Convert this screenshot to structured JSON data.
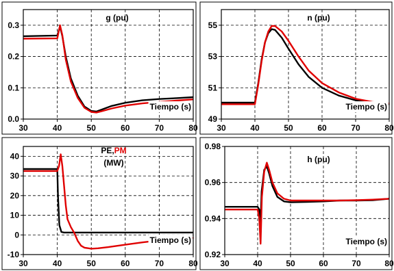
{
  "chart_data": [
    {
      "type": "line",
      "title": "g (pu)",
      "xlabel": "Tiempo (s)",
      "xlim": [
        30,
        80
      ],
      "ylim": [
        0,
        0.35
      ],
      "xticks": [
        30,
        40,
        50,
        60,
        70,
        80
      ],
      "yticks": [
        0,
        0.1,
        0.2,
        0.3
      ],
      "ytick_labels": [
        "0.0",
        "0.1",
        "0.2",
        "0.3"
      ],
      "grid": true,
      "series": [
        {
          "color": "#000000",
          "x": [
            30,
            40,
            40.8,
            41.5,
            42.5,
            44,
            46,
            48,
            50,
            51.5,
            53,
            56,
            60,
            65,
            70,
            75,
            80
          ],
          "y": [
            0.265,
            0.267,
            0.296,
            0.265,
            0.2,
            0.13,
            0.075,
            0.04,
            0.026,
            0.024,
            0.03,
            0.042,
            0.052,
            0.06,
            0.064,
            0.067,
            0.07
          ]
        },
        {
          "color": "#e00000",
          "x": [
            30,
            40,
            40.8,
            41.5,
            42.5,
            44,
            46,
            48,
            50,
            51.5,
            53,
            56,
            60,
            65,
            70,
            75,
            80
          ],
          "y": [
            0.257,
            0.258,
            0.3,
            0.268,
            0.19,
            0.12,
            0.068,
            0.036,
            0.023,
            0.021,
            0.025,
            0.034,
            0.043,
            0.05,
            0.055,
            0.059,
            0.063
          ]
        }
      ]
    },
    {
      "type": "line",
      "title": "n (pu)",
      "xlabel": "Tiempo (s)",
      "xlim": [
        30,
        80
      ],
      "ylim": [
        49,
        56
      ],
      "xticks": [
        30,
        40,
        50,
        60,
        70,
        80
      ],
      "yticks": [
        49,
        51,
        53,
        55
      ],
      "ytick_labels": [
        "49",
        "51",
        "53",
        "55"
      ],
      "grid": true,
      "series": [
        {
          "color": "#000000",
          "x": [
            30,
            40,
            41,
            42,
            43,
            44,
            45,
            46,
            48,
            50,
            53,
            56,
            60,
            65,
            70,
            75,
            80
          ],
          "y": [
            50.05,
            50.05,
            51.3,
            52.8,
            53.9,
            54.5,
            54.75,
            54.7,
            54.2,
            53.5,
            52.5,
            51.7,
            51.0,
            50.5,
            50.2,
            50.05,
            49.95
          ]
        },
        {
          "color": "#e00000",
          "x": [
            30,
            40,
            41,
            42,
            43,
            44,
            45,
            46,
            48,
            50,
            53,
            56,
            60,
            65,
            70,
            75,
            80
          ],
          "y": [
            49.95,
            49.95,
            51.2,
            52.7,
            53.9,
            54.6,
            54.95,
            54.95,
            54.6,
            54.0,
            53.0,
            52.1,
            51.3,
            50.7,
            50.3,
            50.1,
            50.0
          ]
        }
      ]
    },
    {
      "type": "line",
      "title": "PE,PM",
      "title_parts": [
        {
          "text": "PE",
          "color": "#000000"
        },
        {
          "text": ",",
          "color": "#000000"
        },
        {
          "text": "PM",
          "color": "#e00000"
        }
      ],
      "subtitle": "(MW)",
      "xlabel": "Tiempo (s)",
      "xlim": [
        30,
        80
      ],
      "ylim": [
        -10,
        45
      ],
      "xticks": [
        30,
        40,
        50,
        60,
        70,
        80
      ],
      "yticks": [
        -10,
        0,
        10,
        20,
        30,
        40
      ],
      "ytick_labels": [
        "-10",
        "0",
        "10",
        "20",
        "30",
        "40"
      ],
      "grid": true,
      "series": [
        {
          "color": "#000000",
          "x": [
            30,
            39.5,
            40,
            40.2,
            40.6,
            41.2,
            42,
            50,
            60,
            70,
            80
          ],
          "y": [
            33.5,
            33.5,
            33.5,
            20,
            5,
            1.5,
            1.2,
            1.2,
            1.2,
            1.2,
            1.2
          ]
        },
        {
          "color": "#e00000",
          "x": [
            30,
            40,
            40.5,
            41,
            41.5,
            42,
            42.5,
            43,
            44,
            45,
            46,
            47,
            48,
            50,
            52,
            55,
            60,
            65,
            70,
            75,
            80
          ],
          "y": [
            32.5,
            32.5,
            35,
            41,
            35,
            25,
            15,
            8,
            4,
            1,
            -3,
            -5.5,
            -6.5,
            -7,
            -6.8,
            -6.2,
            -5,
            -3.8,
            -2.8,
            -2,
            -1.5
          ]
        }
      ]
    },
    {
      "type": "line",
      "title": "h (pu)",
      "xlabel": "Tiempo (s)",
      "xlim": [
        30,
        80
      ],
      "ylim": [
        0.92,
        0.98
      ],
      "xticks": [
        30,
        40,
        50,
        60,
        70,
        80
      ],
      "yticks": [
        0.92,
        0.94,
        0.96,
        0.98
      ],
      "ytick_labels": [
        "0.92",
        "0.94",
        "0.96",
        "0.98"
      ],
      "grid": true,
      "series": [
        {
          "color": "#000000",
          "x": [
            30,
            40,
            40.5,
            40.8,
            41.2,
            42,
            42.8,
            43.5,
            44.5,
            46,
            48,
            50,
            55,
            60,
            65,
            70,
            75,
            80
          ],
          "y": [
            0.9465,
            0.9465,
            0.945,
            0.933,
            0.955,
            0.967,
            0.969,
            0.965,
            0.958,
            0.952,
            0.9495,
            0.949,
            0.9492,
            0.9495,
            0.95,
            0.95,
            0.9502,
            0.951
          ]
        },
        {
          "color": "#e00000",
          "x": [
            30,
            40,
            40.5,
            40.9,
            41.3,
            42,
            42.8,
            43.5,
            44.5,
            46,
            48,
            50,
            55,
            60,
            65,
            70,
            75,
            80
          ],
          "y": [
            0.945,
            0.945,
            0.94,
            0.926,
            0.952,
            0.966,
            0.971,
            0.967,
            0.96,
            0.954,
            0.951,
            0.95,
            0.95,
            0.95,
            0.95,
            0.9502,
            0.9505,
            0.951
          ]
        }
      ]
    }
  ]
}
